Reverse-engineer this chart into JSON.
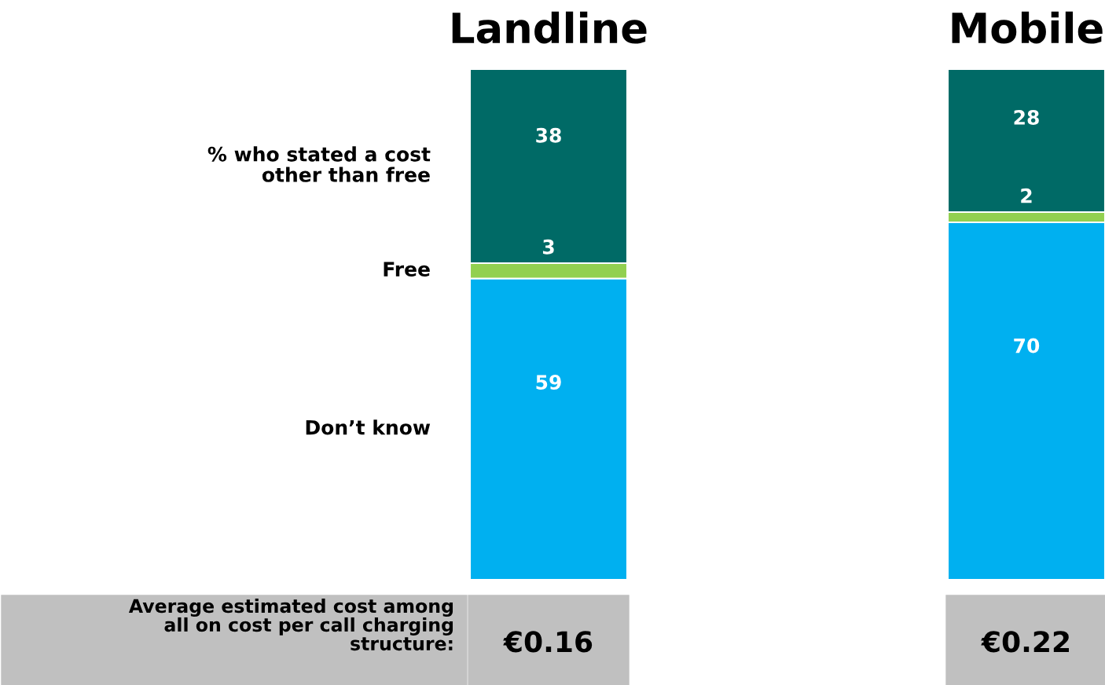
{
  "chart_data": {
    "type": "bar",
    "stacked": true,
    "categories": [
      "Landline",
      "Mobile"
    ],
    "ylim": [
      0,
      100
    ],
    "tick_labels": "x",
    "data_labels": true,
    "grid": false,
    "legend": false,
    "series": [
      {
        "name": "Don’t know",
        "color": "#00b0f0",
        "values": [
          59,
          70
        ]
      },
      {
        "name": "Free",
        "color": "#92d050",
        "values": [
          3,
          2
        ]
      },
      {
        "name": "% who stated a cost\nother than free",
        "color": "#006a66",
        "values": [
          38,
          28
        ]
      }
    ],
    "annotations": [
      "Average estimated cost among\nall on cost per call charging\nstructure:",
      "€0.16",
      "€0.22"
    ]
  }
}
